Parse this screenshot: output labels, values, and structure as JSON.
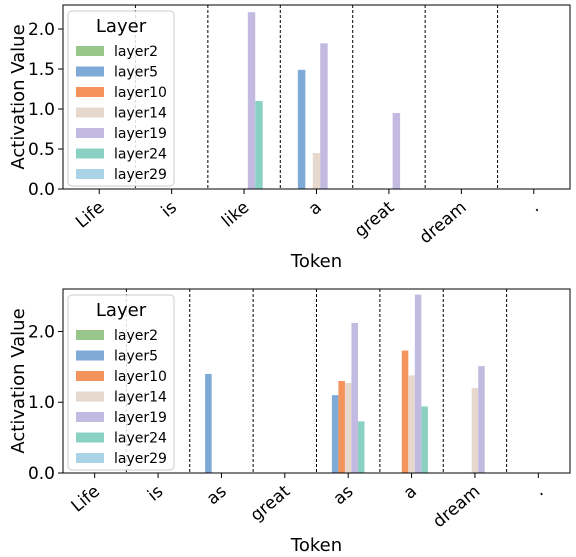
{
  "chart_data": [
    {
      "type": "bar",
      "categories": [
        "Life",
        "is",
        "like",
        "a",
        "great",
        "dream",
        "."
      ],
      "xlabel": "Token",
      "ylabel": "Activation Value",
      "ylim": [
        0,
        2.3
      ],
      "yticks": [
        0.0,
        0.5,
        1.0,
        1.5,
        2.0
      ],
      "ytick_labels": [
        "0.0",
        "0.5",
        "1.0",
        "1.5",
        "2.0"
      ],
      "legend_title": "Layer",
      "legend_position": "top-left",
      "series": [
        {
          "name": "layer2",
          "color": "#98c68a",
          "values": [
            0,
            0,
            0,
            0,
            0,
            0,
            0
          ]
        },
        {
          "name": "layer5",
          "color": "#7fa9d6",
          "values": [
            0,
            0,
            0,
            1.49,
            0,
            0,
            0
          ]
        },
        {
          "name": "layer10",
          "color": "#f4935b",
          "values": [
            0,
            0,
            0,
            0,
            0,
            0,
            0
          ]
        },
        {
          "name": "layer14",
          "color": "#e6d8cc",
          "values": [
            0,
            0,
            0,
            0.45,
            0,
            0,
            0
          ]
        },
        {
          "name": "layer19",
          "color": "#c2bae0",
          "values": [
            0,
            0,
            2.21,
            1.82,
            0.95,
            0,
            0
          ]
        },
        {
          "name": "layer24",
          "color": "#8ad1c4",
          "values": [
            0,
            0,
            1.1,
            0,
            0,
            0,
            0
          ]
        },
        {
          "name": "layer29",
          "color": "#a9d3e4",
          "values": [
            0,
            0,
            0,
            0,
            0,
            0,
            0
          ]
        }
      ]
    },
    {
      "type": "bar",
      "categories": [
        "Life",
        "is",
        "as",
        "great",
        "as",
        "a",
        "dream",
        "."
      ],
      "xlabel": "Token",
      "ylabel": "Activation Value",
      "ylim": [
        0,
        2.6
      ],
      "yticks": [
        0.0,
        1.0,
        2.0
      ],
      "ytick_labels": [
        "0.0",
        "1.0",
        "2.0"
      ],
      "legend_title": "Layer",
      "legend_position": "top-left",
      "series": [
        {
          "name": "layer2",
          "color": "#98c68a",
          "values": [
            0,
            0,
            0,
            0,
            0,
            0,
            0,
            0
          ]
        },
        {
          "name": "layer5",
          "color": "#7fa9d6",
          "values": [
            0,
            0,
            1.4,
            0,
            1.1,
            0,
            0,
            0
          ]
        },
        {
          "name": "layer10",
          "color": "#f4935b",
          "values": [
            0,
            0,
            0,
            0,
            1.3,
            1.73,
            0,
            0
          ]
        },
        {
          "name": "layer14",
          "color": "#e6d8cc",
          "values": [
            0,
            0,
            0,
            0,
            1.27,
            1.38,
            1.2,
            0
          ]
        },
        {
          "name": "layer19",
          "color": "#c2bae0",
          "values": [
            0,
            0,
            0,
            0,
            2.12,
            2.52,
            1.51,
            0
          ]
        },
        {
          "name": "layer24",
          "color": "#8ad1c4",
          "values": [
            0,
            0,
            0,
            0,
            0.73,
            0.94,
            0,
            0
          ]
        },
        {
          "name": "layer29",
          "color": "#a9d3e4",
          "values": [
            0,
            0,
            0,
            0,
            0,
            0,
            0,
            0
          ]
        }
      ]
    }
  ]
}
